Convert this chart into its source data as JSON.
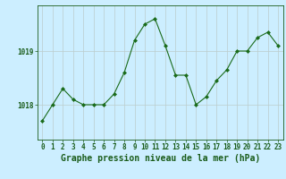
{
  "x": [
    0,
    1,
    2,
    3,
    4,
    5,
    6,
    7,
    8,
    9,
    10,
    11,
    12,
    13,
    14,
    15,
    16,
    17,
    18,
    19,
    20,
    21,
    22,
    23
  ],
  "y": [
    1017.7,
    1018.0,
    1018.3,
    1018.1,
    1018.0,
    1018.0,
    1018.0,
    1018.2,
    1018.6,
    1019.2,
    1019.5,
    1019.6,
    1019.1,
    1018.55,
    1018.55,
    1018.0,
    1018.15,
    1018.45,
    1018.65,
    1019.0,
    1019.0,
    1019.25,
    1019.35,
    1019.1
  ],
  "line_color": "#1a6b1a",
  "marker": "D",
  "marker_size": 2.0,
  "bg_color": "#cceeff",
  "grid_color": "#bbcccc",
  "title": "Graphe pression niveau de la mer (hPa)",
  "ylabel_ticks": [
    1018,
    1019
  ],
  "ylim": [
    1017.35,
    1019.85
  ],
  "xlim": [
    -0.5,
    23.5
  ],
  "title_fontsize": 7.0,
  "tick_fontsize": 5.5,
  "text_color": "#1a5c1a"
}
